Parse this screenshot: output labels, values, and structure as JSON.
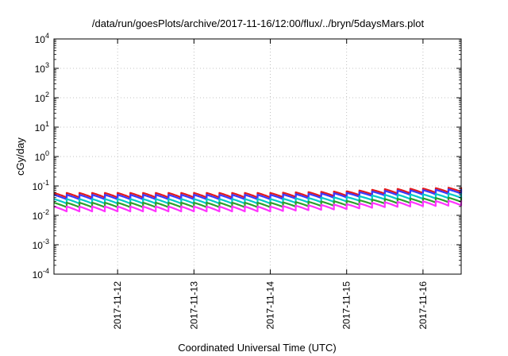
{
  "chart_data": {
    "type": "line",
    "title": "/data/run/goesPlots/archive/2017-11-16/12:00/flux/../bryn/5daysMars.plot",
    "xlabel": "Coordinated Universal Time (UTC)",
    "ylabel": "cGy/day",
    "yscale": "log",
    "ylim": [
      0.0001,
      10000
    ],
    "y_ticks": [
      {
        "value": 0.0001,
        "base": "10",
        "exp": "-4"
      },
      {
        "value": 0.001,
        "base": "10",
        "exp": "-3"
      },
      {
        "value": 0.01,
        "base": "10",
        "exp": "-2"
      },
      {
        "value": 0.1,
        "base": "10",
        "exp": "-1"
      },
      {
        "value": 1,
        "base": "10",
        "exp": "0"
      },
      {
        "value": 10,
        "base": "10",
        "exp": "1"
      },
      {
        "value": 100,
        "base": "10",
        "exp": "2"
      },
      {
        "value": 1000,
        "base": "10",
        "exp": "3"
      },
      {
        "value": 10000,
        "base": "10",
        "exp": "4"
      }
    ],
    "xlim": [
      "2017-11-11 04:00",
      "2017-11-16 12:00"
    ],
    "x_ticks": [
      "2017-11-12",
      "2017-11-13",
      "2017-11-14",
      "2017-11-15",
      "2017-11-16"
    ],
    "grid": true,
    "legend": "none",
    "series": [
      {
        "color": "#e41a1c",
        "base_levels": [
          0.058,
          0.058,
          0.058,
          0.058,
          0.062,
          0.066,
          0.078,
          0.082,
          0.09
        ],
        "sawtooth_ratio": 0.7
      },
      {
        "color": "#3a3aff",
        "base_levels": [
          0.05,
          0.05,
          0.05,
          0.05,
          0.054,
          0.058,
          0.068,
          0.072,
          0.078
        ],
        "sawtooth_ratio": 0.7
      },
      {
        "color": "#00c8c8",
        "base_levels": [
          0.036,
          0.036,
          0.036,
          0.036,
          0.039,
          0.042,
          0.05,
          0.052,
          0.056
        ],
        "sawtooth_ratio": 0.7
      },
      {
        "color": "#2ca02c",
        "base_levels": [
          0.027,
          0.027,
          0.027,
          0.027,
          0.029,
          0.031,
          0.036,
          0.038,
          0.041
        ],
        "sawtooth_ratio": 0.7
      },
      {
        "color": "#ff33ff",
        "base_levels": [
          0.02,
          0.02,
          0.02,
          0.02,
          0.022,
          0.024,
          0.028,
          0.03,
          0.032
        ],
        "sawtooth_ratio": 0.68
      }
    ],
    "level_times": [
      "2017-11-11 04:00",
      "2017-11-12 00:00",
      "2017-11-13 00:00",
      "2017-11-14 00:00",
      "2017-11-14 12:00",
      "2017-11-15 00:00",
      "2017-11-15 12:00",
      "2017-11-16 00:00",
      "2017-11-16 12:00"
    ],
    "sawtooth_period_hours": 4
  }
}
